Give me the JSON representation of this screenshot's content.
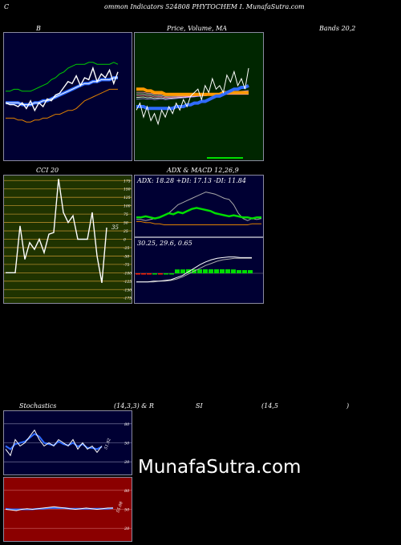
{
  "header": {
    "left_char": "C",
    "title": "ommon  Indicators 524808  PHYTOCHEM I. MunafaSutra.com"
  },
  "labels": {
    "bb": "B",
    "price_ma": "Price,  Volume, MA",
    "bands": "Bands 20,2",
    "cci": "CCI 20",
    "adx_macd": "ADX  & MACD 12,26,9",
    "stoch_a": "Stochastics",
    "stoch_b": "(14,3,3) & R",
    "stoch_c": "SI",
    "stoch_d": "(14,5",
    "stoch_e": ")"
  },
  "watermark": "MunafaSutra.com",
  "colors": {
    "navy": "#000033",
    "green_bg": "#002600",
    "olive_bg": "#1f3300",
    "red_bg": "#8b0000",
    "blue_line": "#2f6bff",
    "orange_line": "#ff9900",
    "green_line": "#00dd00"
  },
  "chart_data": [
    {
      "type": "line",
      "name": "bollinger",
      "series": [
        {
          "values": [
            52,
            51,
            51,
            50,
            52,
            49,
            53,
            48,
            52,
            50,
            54,
            53,
            56,
            57,
            60,
            63,
            62,
            66,
            61,
            65,
            64,
            70,
            63,
            67,
            65,
            69,
            62,
            68
          ]
        },
        {
          "values": [
            52,
            52,
            52,
            52,
            51,
            51,
            51,
            52,
            52,
            53,
            53,
            54,
            55,
            56,
            57,
            58,
            59,
            60,
            61,
            62,
            62,
            63,
            63,
            64,
            64,
            64,
            65,
            65
          ]
        },
        {
          "values": [
            58,
            58,
            59,
            59,
            58,
            58,
            58,
            59,
            60,
            61,
            62,
            64,
            65,
            67,
            68,
            70,
            71,
            72,
            72,
            72,
            73,
            73,
            72,
            72,
            72,
            72,
            73,
            72
          ]
        },
        {
          "values": [
            44,
            44,
            44,
            43,
            43,
            42,
            42,
            43,
            43,
            44,
            44,
            45,
            46,
            46,
            47,
            48,
            48,
            49,
            51,
            53,
            54,
            55,
            56,
            57,
            58,
            59,
            59,
            59
          ]
        }
      ]
    },
    {
      "type": "line",
      "name": "price-volume-ma",
      "series": [
        {
          "values": [
            60,
            64,
            56,
            62,
            54,
            58,
            52,
            60,
            56,
            62,
            58,
            64,
            60,
            66,
            62,
            68,
            70,
            72,
            66,
            74,
            70,
            78,
            72,
            74,
            70,
            80,
            76,
            82,
            74,
            78,
            72,
            84
          ]
        },
        {
          "values": [
            72,
            72,
            72,
            71,
            71,
            70,
            70,
            70,
            69,
            69,
            69,
            69,
            69,
            69,
            69,
            69,
            69,
            69,
            69,
            69,
            69,
            69,
            69,
            69,
            70,
            70,
            70,
            70,
            70,
            70,
            70,
            70
          ]
        },
        {
          "values": [
            62,
            62,
            62,
            61,
            61,
            61,
            61,
            61,
            61,
            61,
            61,
            62,
            62,
            62,
            63,
            63,
            64,
            64,
            65,
            65,
            66,
            67,
            68,
            68,
            69,
            70,
            71,
            72,
            72,
            73,
            73,
            74
          ]
        }
      ]
    },
    {
      "type": "line",
      "name": "cci",
      "tick_labels": [
        "175",
        "150",
        "125",
        "100",
        "75",
        "50",
        "25",
        "0",
        "-25",
        "-50",
        "-75",
        "-100",
        "-125",
        "-150",
        "-175"
      ],
      "last_value_label": "35",
      "series": [
        {
          "values": [
            -100,
            -100,
            -100,
            40,
            -60,
            -10,
            -30,
            0,
            -40,
            15,
            20,
            180,
            80,
            50,
            70,
            0,
            0,
            0,
            80,
            -50,
            -130,
            35
          ]
        }
      ]
    },
    {
      "type": "line",
      "name": "adx",
      "text": "ADX: 18.28  +DI: 17.13 -DI: 11.84",
      "series": [
        {
          "values": [
            18,
            18,
            19,
            18,
            17,
            18,
            20,
            22,
            21,
            23,
            22,
            24,
            26,
            27,
            26,
            25,
            24,
            22,
            21,
            20,
            19,
            20,
            19,
            18,
            18,
            17,
            18,
            18
          ]
        },
        {
          "values": [
            16,
            16,
            15,
            16,
            17,
            18,
            20,
            22,
            26,
            30,
            32,
            34,
            36,
            38,
            40,
            42,
            41,
            40,
            38,
            36,
            35,
            30,
            22,
            17,
            15,
            17,
            16,
            17
          ]
        },
        {
          "values": [
            14,
            14,
            13,
            13,
            12,
            12,
            11,
            11,
            11,
            11,
            11,
            11,
            11,
            11,
            11,
            11,
            11,
            11,
            11,
            11,
            11,
            11,
            11,
            11,
            11,
            12,
            12,
            12
          ]
        }
      ]
    },
    {
      "type": "line",
      "name": "macd",
      "text": "30.25,  29.6,  0.65",
      "series": [
        {
          "values": [
            -4,
            -4,
            -4,
            -3,
            -3,
            -2,
            -1,
            2,
            5,
            10,
            15,
            20,
            24,
            27,
            29,
            30,
            31,
            31,
            30,
            30,
            30
          ]
        },
        {
          "values": [
            -4,
            -4,
            -4,
            -4,
            -3,
            -3,
            -2,
            0,
            3,
            7,
            11,
            15,
            19,
            22,
            25,
            27,
            28,
            29,
            29,
            29,
            29
          ]
        }
      ]
    },
    {
      "type": "line",
      "name": "stochastics",
      "tick_labels": [
        "80",
        "50",
        "20"
      ],
      "last_value_label": "51.92",
      "series": [
        {
          "values": [
            40,
            30,
            55,
            45,
            50,
            60,
            70,
            55,
            45,
            50,
            45,
            55,
            50,
            45,
            55,
            40,
            50,
            40,
            45,
            35,
            45
          ]
        },
        {
          "values": [
            45,
            40,
            48,
            50,
            52,
            58,
            64,
            60,
            50,
            48,
            46,
            52,
            48,
            46,
            50,
            44,
            48,
            42,
            42,
            40,
            44
          ]
        }
      ]
    },
    {
      "type": "line",
      "name": "rsi",
      "tick_labels": [
        "80",
        "50",
        "20"
      ],
      "last_value_label": "55.08",
      "series": [
        {
          "values": [
            50,
            49,
            48,
            50,
            51,
            50,
            51,
            52,
            53,
            54,
            53,
            52,
            51,
            50,
            51,
            52,
            51,
            50,
            51,
            52,
            52
          ]
        },
        {
          "values": [
            51,
            50,
            50,
            50,
            50,
            50,
            51,
            51,
            52,
            52,
            52,
            52,
            51,
            51,
            51,
            51,
            51,
            51,
            51,
            51,
            52
          ]
        }
      ]
    }
  ]
}
